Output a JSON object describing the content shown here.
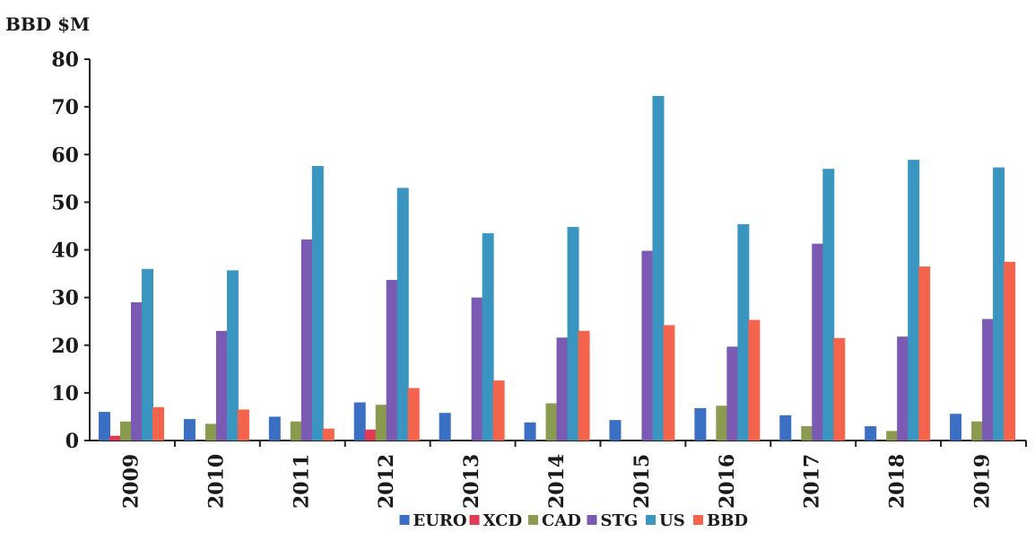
{
  "chart_data": {
    "type": "bar",
    "ylabel": "BBD $M",
    "ylim": [
      0,
      80
    ],
    "yticks": [
      0,
      10,
      20,
      30,
      40,
      50,
      60,
      70,
      80
    ],
    "categories": [
      "2009",
      "2010",
      "2011",
      "2012",
      "2013",
      "2014",
      "2015",
      "2016",
      "2017",
      "2018",
      "2019"
    ],
    "legend_position": "bottom",
    "grid": false,
    "series": [
      {
        "name": "EURO",
        "color": "#3b6fc4",
        "values": [
          6,
          4.5,
          5,
          8,
          5.8,
          3.8,
          4.3,
          6.8,
          5.3,
          3,
          5.6
        ]
      },
      {
        "name": "XCD",
        "color": "#e03a55",
        "values": [
          1,
          0,
          0,
          2.3,
          0,
          0,
          0,
          0,
          0,
          0,
          0
        ]
      },
      {
        "name": "CAD",
        "color": "#8a9a4e",
        "values": [
          4,
          3.5,
          4,
          7.5,
          0,
          7.8,
          0,
          7.3,
          3,
          2,
          4
        ]
      },
      {
        "name": "STG",
        "color": "#7a5ab2",
        "values": [
          29,
          23,
          42.2,
          33.7,
          30,
          21.6,
          39.8,
          19.7,
          41.3,
          21.8,
          25.5
        ]
      },
      {
        "name": "US",
        "color": "#3a96c0",
        "values": [
          36,
          35.7,
          57.6,
          53,
          43.5,
          44.8,
          72.3,
          45.4,
          57,
          58.9,
          57.3
        ]
      },
      {
        "name": "BBD",
        "color": "#f4634c",
        "values": [
          7,
          6.5,
          2.5,
          11,
          12.6,
          23,
          24.2,
          25.3,
          21.5,
          36.5,
          37.5
        ]
      }
    ]
  }
}
